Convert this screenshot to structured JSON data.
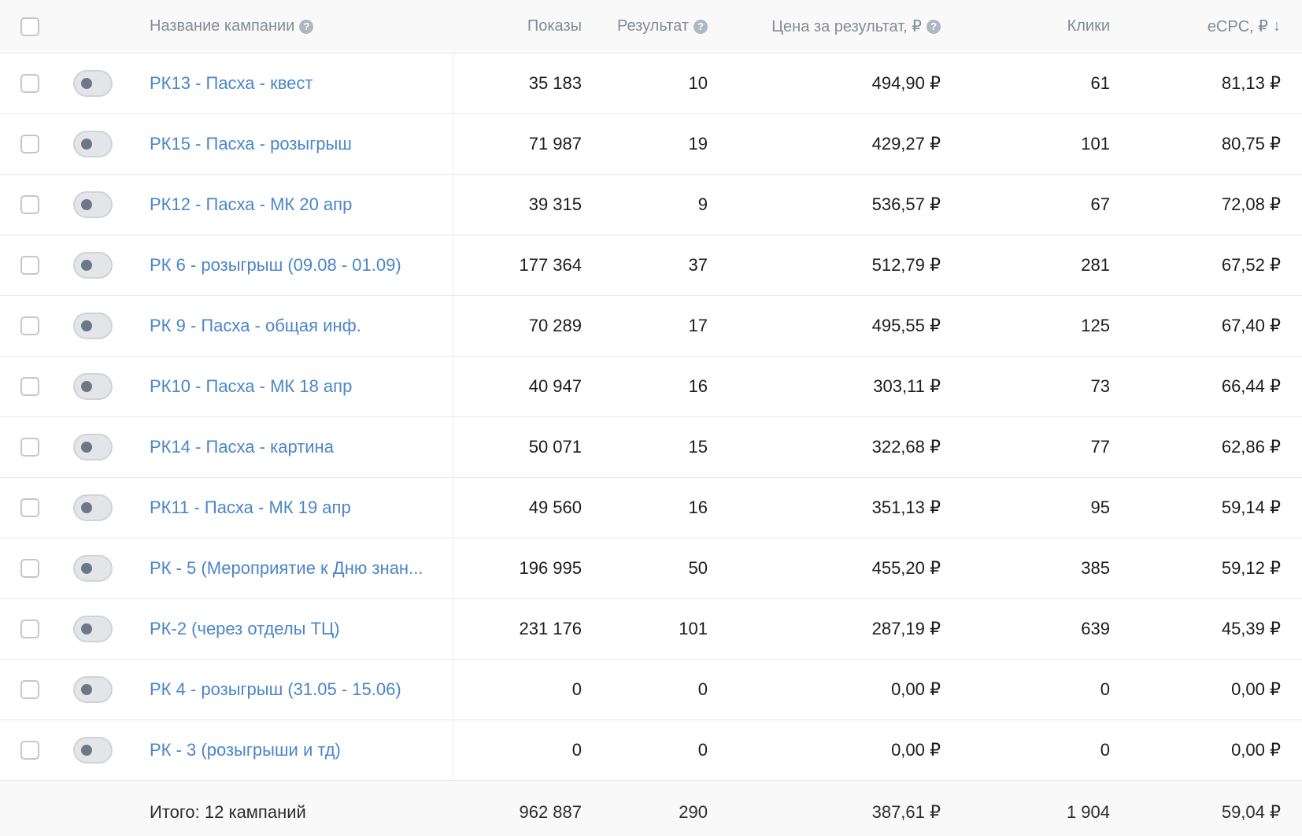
{
  "header": {
    "name": "Название кампании",
    "shows": "Показы",
    "result": "Результат",
    "price": "Цена за результат, ₽",
    "clicks": "Клики",
    "ecpc": "eCPC, ₽",
    "sort_icon": "↓",
    "help_icon": "?"
  },
  "rows": [
    {
      "name": "РК13 - Пасха - квест",
      "shows": "35 183",
      "result": "10",
      "price": "494,90 ₽",
      "clicks": "61",
      "ecpc": "81,13 ₽"
    },
    {
      "name": "РК15 - Пасха - розыгрыш",
      "shows": "71 987",
      "result": "19",
      "price": "429,27 ₽",
      "clicks": "101",
      "ecpc": "80,75 ₽"
    },
    {
      "name": "РК12 - Пасха - МК 20 апр",
      "shows": "39 315",
      "result": "9",
      "price": "536,57 ₽",
      "clicks": "67",
      "ecpc": "72,08 ₽"
    },
    {
      "name": "РК 6 - розыгрыш (09.08 - 01.09)",
      "shows": "177 364",
      "result": "37",
      "price": "512,79 ₽",
      "clicks": "281",
      "ecpc": "67,52 ₽"
    },
    {
      "name": "РК 9 - Пасха - общая инф.",
      "shows": "70 289",
      "result": "17",
      "price": "495,55 ₽",
      "clicks": "125",
      "ecpc": "67,40 ₽"
    },
    {
      "name": "РК10 - Пасха - МК 18 апр",
      "shows": "40 947",
      "result": "16",
      "price": "303,11 ₽",
      "clicks": "73",
      "ecpc": "66,44 ₽"
    },
    {
      "name": "РК14 - Пасха - картина",
      "shows": "50 071",
      "result": "15",
      "price": "322,68 ₽",
      "clicks": "77",
      "ecpc": "62,86 ₽"
    },
    {
      "name": "РК11 - Пасха - МК 19 апр",
      "shows": "49 560",
      "result": "16",
      "price": "351,13 ₽",
      "clicks": "95",
      "ecpc": "59,14 ₽"
    },
    {
      "name": "РК - 5 (Мероприятие к Дню знан...",
      "shows": "196 995",
      "result": "50",
      "price": "455,20 ₽",
      "clicks": "385",
      "ecpc": "59,12 ₽"
    },
    {
      "name": "РК-2 (через отделы ТЦ)",
      "shows": "231 176",
      "result": "101",
      "price": "287,19 ₽",
      "clicks": "639",
      "ecpc": "45,39 ₽"
    },
    {
      "name": "РК 4 - розыгрыш (31.05 - 15.06)",
      "shows": "0",
      "result": "0",
      "price": "0,00 ₽",
      "clicks": "0",
      "ecpc": "0,00 ₽"
    },
    {
      "name": "РК - 3 (розыгрыши и тд)",
      "shows": "0",
      "result": "0",
      "price": "0,00 ₽",
      "clicks": "0",
      "ecpc": "0,00 ₽"
    }
  ],
  "footer": {
    "label": "Итого: 12 кампаний",
    "shows": "962 887",
    "result": "290",
    "price": "387,61 ₽",
    "clicks": "1 904",
    "ecpc": "59,04 ₽"
  },
  "colors": {
    "link": "#4a86c8",
    "header_text": "#818c99",
    "border": "#e7e8ec",
    "toggle_off": "#e3e5e8"
  }
}
